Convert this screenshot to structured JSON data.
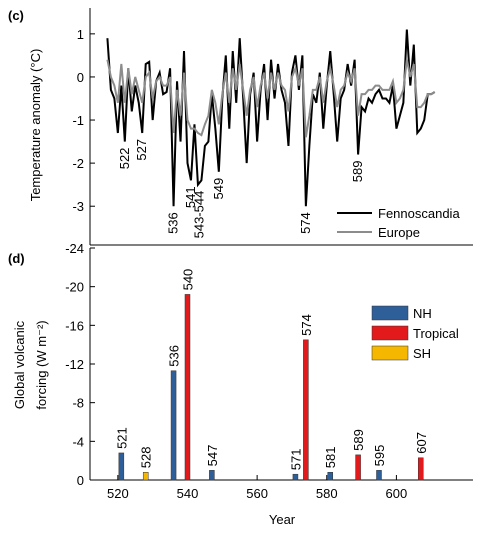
{
  "chart_data": [
    {
      "type": "line",
      "panel_label": "(c)",
      "y_label": "Temperature anomaly (°C)",
      "xlim": [
        512,
        622
      ],
      "ylim": [
        -3.9,
        1.6
      ],
      "yticks": [
        1,
        0,
        -1,
        -2,
        -3
      ],
      "series": [
        {
          "name": "Fennoscandia",
          "color": "#000000",
          "x": [
            517,
            518,
            519,
            520,
            521,
            522,
            523,
            524,
            525,
            526,
            527,
            528,
            529,
            530,
            531,
            532,
            533,
            534,
            535,
            536,
            537,
            538,
            539,
            540,
            541,
            542,
            543,
            544,
            545,
            546,
            547,
            548,
            549,
            550,
            551,
            552,
            553,
            554,
            555,
            556,
            557,
            558,
            559,
            560,
            561,
            562,
            563,
            564,
            565,
            566,
            567,
            568,
            569,
            570,
            571,
            572,
            573,
            574,
            575,
            576,
            577,
            578,
            579,
            580,
            581,
            582,
            583,
            584,
            585,
            586,
            587,
            588,
            589,
            590,
            591,
            592,
            593,
            594,
            595,
            596,
            597,
            598,
            599,
            600,
            601,
            602,
            603,
            604,
            605,
            606,
            607,
            608,
            609,
            610,
            611
          ],
          "values": [
            0.9,
            -0.3,
            -0.5,
            -1.3,
            -0.2,
            -1.5,
            0.2,
            -0.8,
            -0.2,
            -0.6,
            -1.3,
            0.3,
            0.35,
            -1.0,
            -0.1,
            0.1,
            -0.4,
            -0.35,
            0.2,
            -3.0,
            -0.1,
            -1.5,
            0.6,
            -2.0,
            -2.4,
            -1.1,
            -2.5,
            -2.4,
            -1.6,
            -1.5,
            -0.4,
            -1.2,
            -2.2,
            -0.5,
            0.5,
            -1.2,
            0.6,
            -0.6,
            0.9,
            -0.5,
            -2.0,
            -0.4,
            0.1,
            -1.5,
            -0.3,
            0.3,
            -1.0,
            0.4,
            -0.5,
            0.3,
            -0.3,
            -0.6,
            -1.6,
            0.1,
            0.5,
            -0.3,
            0.5,
            -3.0,
            -1.6,
            -0.4,
            -0.6,
            0.1,
            -1.2,
            -0.2,
            0.6,
            -0.4,
            -1.5,
            -0.5,
            -0.3,
            0.3,
            -0.2,
            0.4,
            -1.8,
            -0.7,
            -0.8,
            -0.5,
            -0.6,
            -0.4,
            -0.3,
            -0.5,
            -0.5,
            -0.6,
            -0.2,
            -1.2,
            -0.9,
            -0.6,
            1.1,
            -0.2,
            0.75,
            -1.3,
            -1.2,
            -1.0,
            -0.4,
            -0.4,
            -0.35
          ]
        },
        {
          "name": "Europe",
          "color": "#8c8c8c",
          "x": [
            517,
            518,
            519,
            520,
            521,
            522,
            523,
            524,
            525,
            526,
            527,
            528,
            529,
            530,
            531,
            532,
            533,
            534,
            535,
            536,
            537,
            538,
            539,
            540,
            541,
            542,
            543,
            544,
            545,
            546,
            547,
            548,
            549,
            550,
            551,
            552,
            553,
            554,
            555,
            556,
            557,
            558,
            559,
            560,
            561,
            562,
            563,
            564,
            565,
            566,
            567,
            568,
            569,
            570,
            571,
            572,
            573,
            574,
            575,
            576,
            577,
            578,
            579,
            580,
            581,
            582,
            583,
            584,
            585,
            586,
            587,
            588,
            589,
            590,
            591,
            592,
            593,
            594,
            595,
            596,
            597,
            598,
            599,
            600,
            601,
            602,
            603,
            604,
            605,
            606,
            607,
            608,
            609,
            610,
            611
          ],
          "values": [
            0.4,
            0.0,
            -0.2,
            -0.6,
            0.3,
            -0.6,
            0.2,
            -0.4,
            0.0,
            -0.3,
            -0.6,
            0.0,
            0.1,
            -0.5,
            -0.1,
            0.0,
            -0.2,
            -0.2,
            0.0,
            -1.3,
            -0.3,
            -0.9,
            0.1,
            -1.0,
            -1.2,
            -1.2,
            -1.3,
            -1.35,
            -1.1,
            -0.9,
            -0.3,
            -0.6,
            -1.1,
            -0.4,
            0.1,
            -0.6,
            0.2,
            -0.3,
            0.3,
            -0.3,
            -0.9,
            -0.3,
            0.0,
            -0.7,
            -0.2,
            0.1,
            -0.5,
            0.1,
            -0.3,
            0.1,
            -0.2,
            -0.3,
            -0.8,
            0.0,
            0.2,
            -0.2,
            0.2,
            -1.4,
            -0.9,
            -0.3,
            -0.3,
            0.0,
            -0.6,
            -0.1,
            0.2,
            -0.2,
            -0.7,
            -0.3,
            -0.2,
            0.1,
            -0.1,
            0.2,
            -0.9,
            -0.4,
            -0.4,
            -0.3,
            -0.3,
            -0.2,
            -0.2,
            -0.3,
            -0.3,
            -0.3,
            -0.1,
            -0.6,
            -0.5,
            -0.3,
            0.4,
            0.0,
            0.3,
            -0.7,
            -0.7,
            -0.6,
            -0.4,
            -0.4,
            -0.35
          ]
        }
      ],
      "annotations": [
        {
          "text": "522",
          "x": 522,
          "y": -1.5
        },
        {
          "text": "527",
          "x": 527,
          "y": -1.3
        },
        {
          "text": "536",
          "x": 536,
          "y": -3.0
        },
        {
          "text": "541",
          "x": 541,
          "y": -2.4
        },
        {
          "text": "543-544",
          "x": 543.5,
          "y": -2.5
        },
        {
          "text": "549",
          "x": 549,
          "y": -2.2
        },
        {
          "text": "574",
          "x": 574,
          "y": -3.0
        },
        {
          "text": "589",
          "x": 589,
          "y": -1.8
        }
      ]
    },
    {
      "type": "bar",
      "panel_label": "(d)",
      "y_label": [
        "Global volcanic",
        "forcing (W m⁻²)"
      ],
      "x_label": "Year",
      "xlim": [
        512,
        622
      ],
      "xticks": [
        520,
        540,
        560,
        580,
        600
      ],
      "ylim": [
        0,
        -24
      ],
      "yticks": [
        0,
        -4,
        -8,
        -12,
        -16,
        -20,
        -24
      ],
      "series": [
        {
          "name": "NH",
          "color": "#2f5f98",
          "x": [
            521,
            536,
            547,
            571,
            581,
            595
          ],
          "values": [
            -2.8,
            -11.3,
            -1.0,
            -0.6,
            -0.8,
            -1.0
          ]
        },
        {
          "name": "Tropical",
          "color": "#e31a1c",
          "x": [
            540,
            574,
            589,
            607
          ],
          "values": [
            -19.2,
            -14.5,
            -2.6,
            -2.3
          ]
        },
        {
          "name": "SH",
          "color": "#f5b700",
          "x": [
            528
          ],
          "values": [
            -0.8
          ]
        }
      ]
    }
  ]
}
